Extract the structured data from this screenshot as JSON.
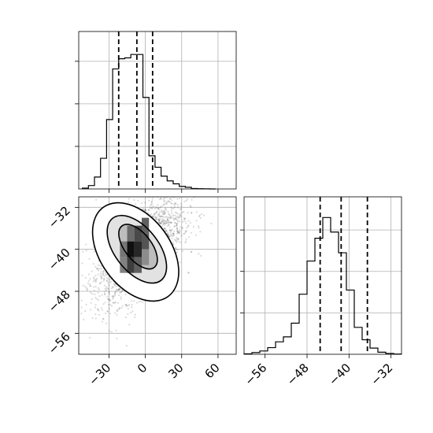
{
  "chart_data": [
    {
      "panel": "top-left",
      "type": "histogram",
      "variable": "x",
      "bin_edges": [
        -52,
        -47,
        -42,
        -37,
        -32,
        -27,
        -22,
        -17,
        -12,
        -7,
        -2,
        3,
        8,
        13,
        18,
        23,
        28,
        33,
        38,
        43,
        48,
        53,
        58
      ],
      "counts": [
        0.2,
        0.8,
        2.8,
        7.2,
        16.3,
        28.2,
        30.6,
        30.8,
        31.6,
        31.6,
        21.5,
        7.8,
        5.1,
        3.0,
        1.9,
        1.2,
        0.6,
        0.4,
        0.1,
        0.05,
        0.02,
        0
      ],
      "quantile_lines": [
        -22,
        -7,
        6
      ],
      "xlim": [
        -55,
        75
      ],
      "ylim": [
        0,
        37
      ],
      "xticks": [
        -30,
        0,
        30,
        60
      ],
      "yticks": [
        10,
        20,
        30
      ],
      "grid": true,
      "tick_labels_shown": false
    },
    {
      "panel": "bottom-left",
      "type": "2d-histogram-contour",
      "x_variable": "x",
      "y_variable": "y",
      "xlim": [
        -55,
        75
      ],
      "ylim": [
        -60,
        -30
      ],
      "xticks": [
        -30,
        0,
        30,
        60
      ],
      "xtick_labels": [
        "−30",
        "0",
        "30",
        "60"
      ],
      "yticks": [
        -32,
        -40,
        -48,
        -56
      ],
      "ytick_labels": [
        "−32",
        "−40",
        "−48",
        "−56"
      ],
      "density_cells": [
        {
          "x": -12,
          "y": -37,
          "level": 0.55
        },
        {
          "x": -6,
          "y": -37,
          "level": 0.7
        },
        {
          "x": 0,
          "y": -35.5,
          "level": 0.6
        },
        {
          "x": -18,
          "y": -40,
          "level": 0.5
        },
        {
          "x": -12,
          "y": -40,
          "level": 0.95
        },
        {
          "x": -6,
          "y": -40,
          "level": 0.85
        },
        {
          "x": 0,
          "y": -38.5,
          "level": 0.65
        },
        {
          "x": -18,
          "y": -43,
          "level": 0.45
        },
        {
          "x": -12,
          "y": -43,
          "level": 0.75
        },
        {
          "x": -6,
          "y": -43,
          "level": 0.6
        },
        {
          "x": 0,
          "y": -41.5,
          "level": 0.4
        }
      ],
      "contours": [
        {
          "cx": -6,
          "cy": -39.5,
          "rx": 11,
          "ry": 5.0,
          "angle_deg": -38
        },
        {
          "cx": -7,
          "cy": -40,
          "rx": 18,
          "ry": 7.5,
          "angle_deg": -38
        },
        {
          "cx": -8,
          "cy": -40.5,
          "rx": 29,
          "ry": 10.5,
          "angle_deg": -36
        }
      ],
      "scatter": {
        "mean": [
          -5,
          -40
        ],
        "sd": [
          18,
          5
        ],
        "correlation": 0.55,
        "n": 2400,
        "color": "#000000"
      },
      "grid": true
    },
    {
      "panel": "bottom-right",
      "type": "histogram",
      "variable": "y",
      "bin_edges": [
        -60,
        -58.5,
        -57,
        -55.5,
        -54,
        -52.5,
        -51,
        -49.5,
        -48,
        -46.5,
        -45,
        -43.5,
        -42,
        -40.5,
        -39,
        -37.5,
        -36,
        -34.5,
        -33,
        -31.5,
        -30
      ],
      "counts": [
        0.1,
        0.4,
        0.8,
        1.6,
        3.0,
        4.2,
        7.5,
        14.5,
        22.5,
        28.0,
        33.0,
        29.5,
        24.5,
        15.5,
        6.5,
        3.5,
        1.5,
        0.5,
        0.2,
        0.05
      ],
      "quantile_lines": [
        -45.5,
        -41.5,
        -36.5
      ],
      "xlim": [
        -60,
        -30
      ],
      "ylim": [
        0,
        38
      ],
      "xticks": [
        -56,
        -48,
        -40,
        -32
      ],
      "xtick_labels": [
        "−56",
        "−48",
        "−40",
        "−32"
      ],
      "yticks": [
        10,
        20,
        30
      ],
      "grid": true,
      "tick_labels_shown": false
    }
  ]
}
